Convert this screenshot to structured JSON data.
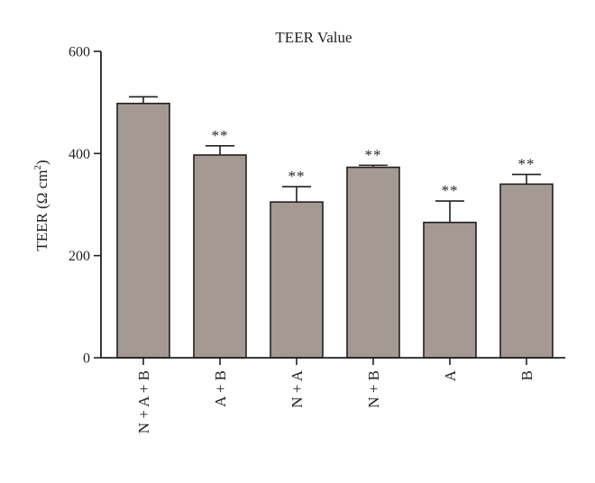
{
  "chart_data": {
    "type": "bar",
    "title": "TEER Value",
    "xlabel": "",
    "ylabel": {
      "main": "TEER (Ω cm",
      "sup": "2",
      "close": ")"
    },
    "ylim": [
      0,
      600
    ],
    "yticks": [
      0,
      200,
      400,
      600
    ],
    "categories": [
      "N + A + B",
      "A + B",
      "N + A",
      "N + B",
      "A",
      "B"
    ],
    "values": [
      498,
      397,
      305,
      373,
      265,
      340
    ],
    "errors": [
      13,
      18,
      30,
      4,
      42,
      19
    ],
    "significance": [
      "",
      "**",
      "**",
      "**",
      "**",
      "**"
    ],
    "grid": false,
    "bar_color": "#a49a93"
  }
}
